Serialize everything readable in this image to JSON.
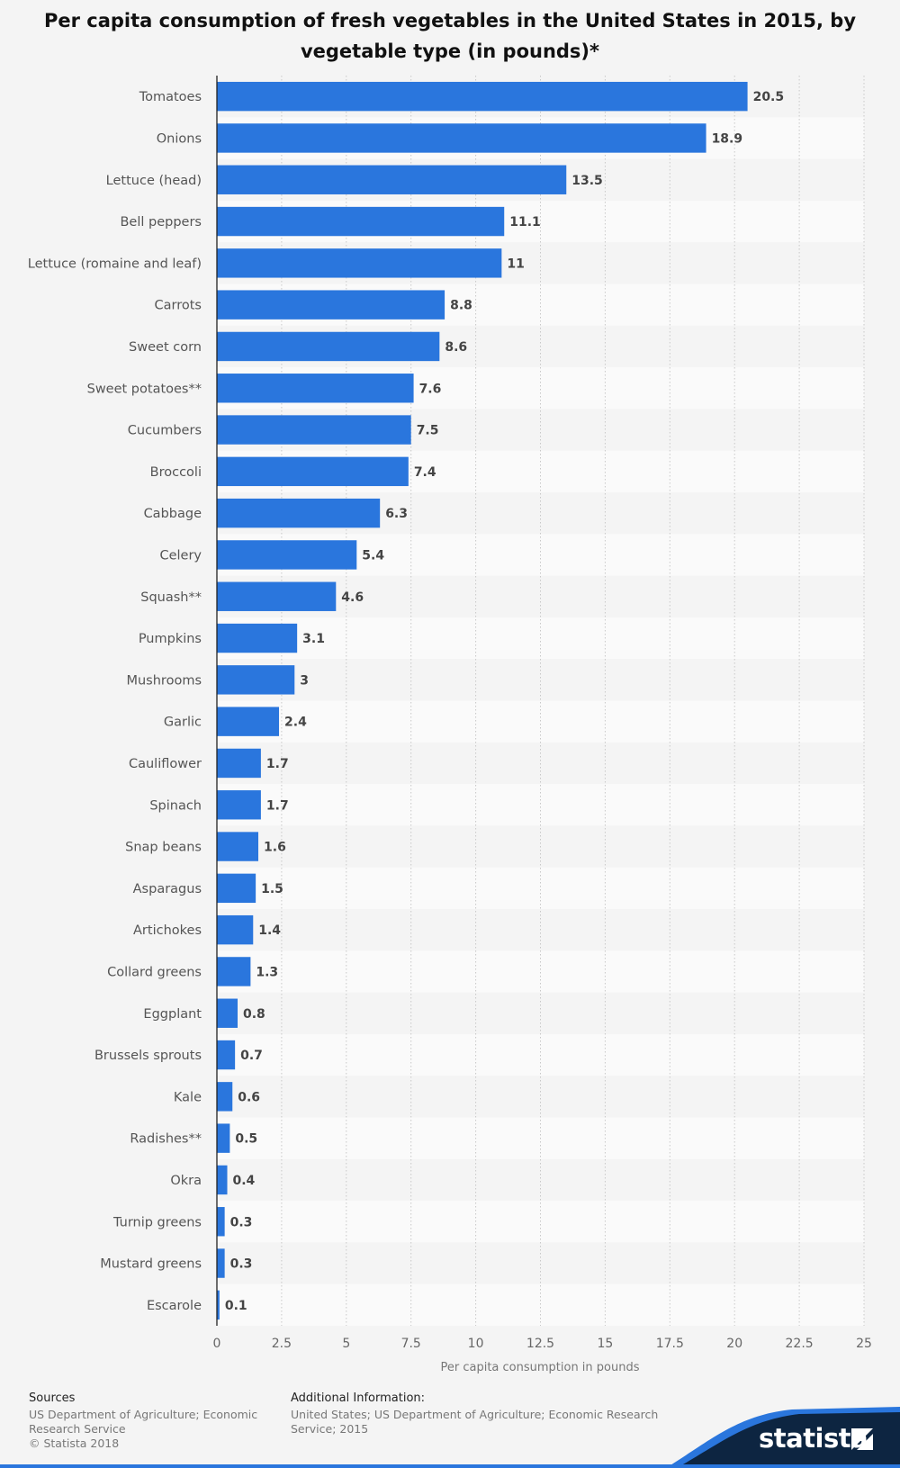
{
  "chart_data": {
    "type": "bar",
    "orientation": "horizontal",
    "title": "Per capita consumption of fresh vegetables in the United States in 2015, by vegetable type (in pounds)*",
    "categories": [
      "Tomatoes",
      "Onions",
      "Lettuce (head)",
      "Bell peppers",
      "Lettuce (romaine and leaf)",
      "Carrots",
      "Sweet corn",
      "Sweet potatoes**",
      "Cucumbers",
      "Broccoli",
      "Cabbage",
      "Celery",
      "Squash**",
      "Pumpkins",
      "Mushrooms",
      "Garlic",
      "Cauliflower",
      "Spinach",
      "Snap beans",
      "Asparagus",
      "Artichokes",
      "Collard greens",
      "Eggplant",
      "Brussels sprouts",
      "Kale",
      "Radishes**",
      "Okra",
      "Turnip greens",
      "Mustard greens",
      "Escarole"
    ],
    "values": [
      20.5,
      18.9,
      13.5,
      11.1,
      11,
      8.8,
      8.6,
      7.6,
      7.5,
      7.4,
      6.3,
      5.4,
      4.6,
      3.1,
      3,
      2.4,
      1.7,
      1.7,
      1.6,
      1.5,
      1.4,
      1.3,
      0.8,
      0.7,
      0.6,
      0.5,
      0.4,
      0.3,
      0.3,
      0.1
    ],
    "value_labels": [
      "20.5",
      "18.9",
      "13.5",
      "11.1",
      "11",
      "8.8",
      "8.6",
      "7.6",
      "7.5",
      "7.4",
      "6.3",
      "5.4",
      "4.6",
      "3.1",
      "3",
      "2.4",
      "1.7",
      "1.7",
      "1.6",
      "1.5",
      "1.4",
      "1.3",
      "0.8",
      "0.7",
      "0.6",
      "0.5",
      "0.4",
      "0.3",
      "0.3",
      "0.1"
    ],
    "xlabel": "Per capita consumption in pounds",
    "xlim": [
      0,
      25
    ],
    "xticks": [
      0,
      2.5,
      5,
      7.5,
      10,
      12.5,
      15,
      17.5,
      20,
      22.5,
      25
    ],
    "xtick_labels": [
      "0",
      "2.5",
      "5",
      "7.5",
      "10",
      "12.5",
      "15",
      "17.5",
      "20",
      "22.5",
      "25"
    ],
    "grid": "vertical-dotted",
    "bar_color": "#2a76dd"
  },
  "footer": {
    "sources_heading": "Sources",
    "sources_lines": [
      "US Department of Agriculture; Economic",
      "Research Service",
      "© Statista 2018"
    ],
    "additional_heading": "Additional Information:",
    "additional_lines": [
      "United States; US Department of Agriculture; Economic Research",
      "Service; 2015"
    ]
  },
  "brand": {
    "name": "statista",
    "logo_icon": "statista-logo-icon",
    "dark_color": "#0d2541",
    "accent_color": "#2a76dd"
  }
}
